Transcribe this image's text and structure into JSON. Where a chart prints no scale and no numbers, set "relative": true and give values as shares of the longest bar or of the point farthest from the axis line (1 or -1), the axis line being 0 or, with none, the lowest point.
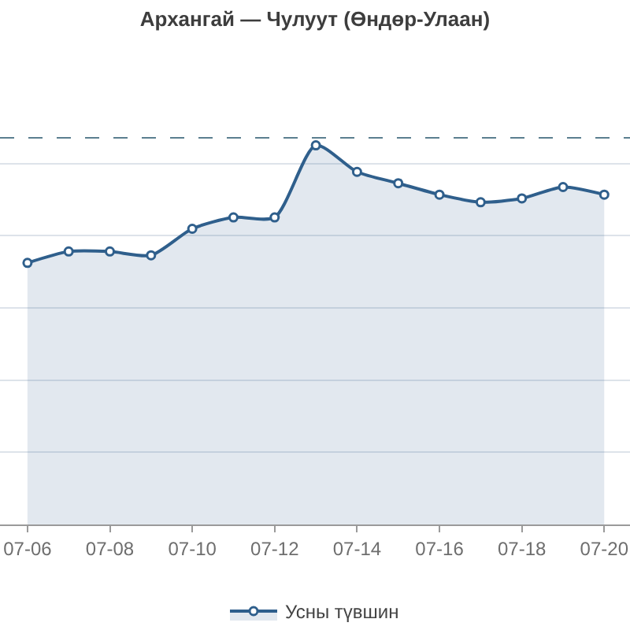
{
  "chart_data": {
    "type": "area",
    "title": "Архангай — Чулуут (Өндөр-Улаан)",
    "x": [
      "--07-06",
      "--07-07",
      "--07-08",
      "--07-09",
      "--07-10",
      "--07-11",
      "--07-12",
      "--07-13",
      "--07-14",
      "--07-15",
      "--07-16",
      "--07-17",
      "--07-18",
      "--07-19",
      "--07-20"
    ],
    "series": [
      {
        "name": "Усны түвшин",
        "color": "#2f5f8c",
        "values": [
          0.69,
          0.72,
          0.72,
          0.71,
          0.78,
          0.81,
          0.81,
          1,
          0.93,
          0.9,
          0.87,
          0.85,
          0.86,
          0.89,
          0.87
        ]
      }
    ],
    "relative": true,
    "xlim": [
      "--07-05T08:00",
      "--07-20T15:00"
    ],
    "xticks": [
      {
        "value": "--07-06",
        "label": "07-06"
      },
      {
        "value": "--07-08",
        "label": "07-08"
      },
      {
        "value": "--07-10",
        "label": "07-10"
      },
      {
        "value": "--07-12",
        "label": "07-12"
      },
      {
        "value": "--07-14",
        "label": "07-14"
      },
      {
        "value": "--07-16",
        "label": "07-16"
      },
      {
        "value": "--07-18",
        "label": "07-18"
      },
      {
        "value": "--07-20",
        "label": "07-20"
      }
    ],
    "ref_lines": [
      {
        "axis": "y",
        "value": 1.02,
        "color": "#5b7f8f",
        "line_style": "dashed"
      }
    ],
    "grid": "y",
    "legend": "bottom",
    "marker": "circle",
    "line_style": "solid",
    "tick_labels": "x"
  }
}
